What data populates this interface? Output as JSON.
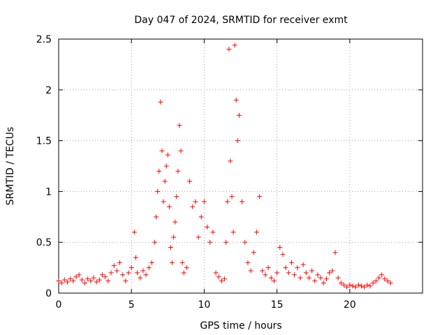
{
  "chart_data": {
    "type": "scatter",
    "title": "Day 047 of 2024, SRMTID for receiver exmt",
    "xlabel": "GPS time / hours",
    "ylabel": "SRMTID / TECUs",
    "xlim": [
      0,
      25
    ],
    "ylim": [
      0,
      2.5
    ],
    "xticks": [
      0,
      5,
      10,
      15,
      20
    ],
    "xtick_labels": [
      "0",
      "5",
      "10",
      "15",
      "20"
    ],
    "yticks": [
      0,
      0.5,
      1,
      1.5,
      2,
      2.5
    ],
    "ytick_labels": [
      "0",
      "0.5",
      "1",
      "1.5",
      "2",
      "2.5"
    ],
    "grid": true,
    "marker": "plus",
    "color": "#ff0000",
    "series": [
      {
        "name": "SRMTID",
        "x": [
          0.0,
          0.2,
          0.4,
          0.6,
          0.8,
          1.0,
          1.2,
          1.4,
          1.6,
          1.8,
          2.0,
          2.2,
          2.4,
          2.6,
          2.8,
          3.0,
          3.2,
          3.4,
          3.6,
          3.8,
          4.0,
          4.2,
          4.4,
          4.6,
          4.8,
          5.0,
          5.2,
          5.3,
          5.4,
          5.6,
          5.8,
          6.0,
          6.2,
          6.4,
          6.6,
          6.7,
          6.8,
          6.9,
          7.0,
          7.1,
          7.2,
          7.3,
          7.4,
          7.5,
          7.6,
          7.7,
          7.8,
          7.9,
          8.0,
          8.1,
          8.2,
          8.3,
          8.4,
          8.5,
          8.6,
          8.8,
          9.0,
          9.2,
          9.4,
          9.6,
          9.8,
          10.0,
          10.2,
          10.4,
          10.6,
          10.8,
          11.0,
          11.2,
          11.4,
          11.5,
          11.6,
          11.7,
          11.8,
          11.9,
          12.0,
          12.1,
          12.2,
          12.3,
          12.4,
          12.6,
          12.8,
          13.0,
          13.2,
          13.4,
          13.6,
          13.8,
          14.0,
          14.2,
          14.4,
          14.6,
          14.8,
          15.0,
          15.2,
          15.4,
          15.6,
          15.8,
          16.0,
          16.2,
          16.4,
          16.6,
          16.8,
          17.0,
          17.2,
          17.4,
          17.6,
          17.8,
          18.0,
          18.2,
          18.4,
          18.6,
          18.8,
          19.0,
          19.2,
          19.4,
          19.6,
          19.8,
          20.0,
          20.2,
          20.4,
          20.6,
          20.8,
          21.0,
          21.2,
          21.4,
          21.6,
          21.8,
          22.0,
          22.2,
          22.4,
          22.6,
          22.8
        ],
        "y": [
          0.12,
          0.1,
          0.13,
          0.11,
          0.14,
          0.12,
          0.16,
          0.18,
          0.13,
          0.1,
          0.14,
          0.12,
          0.15,
          0.11,
          0.13,
          0.18,
          0.16,
          0.12,
          0.2,
          0.27,
          0.22,
          0.3,
          0.18,
          0.12,
          0.2,
          0.25,
          0.6,
          0.35,
          0.2,
          0.15,
          0.22,
          0.18,
          0.25,
          0.3,
          0.5,
          0.75,
          1.0,
          1.2,
          1.88,
          1.4,
          0.9,
          1.1,
          1.25,
          1.36,
          0.85,
          0.45,
          0.3,
          0.55,
          0.7,
          0.95,
          1.2,
          1.65,
          1.4,
          0.3,
          0.2,
          0.25,
          1.1,
          0.85,
          0.9,
          0.55,
          0.75,
          0.9,
          0.65,
          0.5,
          0.6,
          0.2,
          0.16,
          0.12,
          0.14,
          0.5,
          0.9,
          2.4,
          1.3,
          0.95,
          0.6,
          2.44,
          1.9,
          1.5,
          1.75,
          0.9,
          0.5,
          0.3,
          0.22,
          0.4,
          0.6,
          0.95,
          0.22,
          0.18,
          0.25,
          0.15,
          0.12,
          0.2,
          0.45,
          0.38,
          0.25,
          0.2,
          0.3,
          0.18,
          0.25,
          0.15,
          0.28,
          0.2,
          0.15,
          0.22,
          0.12,
          0.18,
          0.15,
          0.1,
          0.14,
          0.2,
          0.22,
          0.4,
          0.15,
          0.1,
          0.08,
          0.06,
          0.08,
          0.07,
          0.06,
          0.08,
          0.07,
          0.06,
          0.08,
          0.07,
          0.1,
          0.12,
          0.15,
          0.18,
          0.14,
          0.12,
          0.1
        ]
      }
    ]
  }
}
